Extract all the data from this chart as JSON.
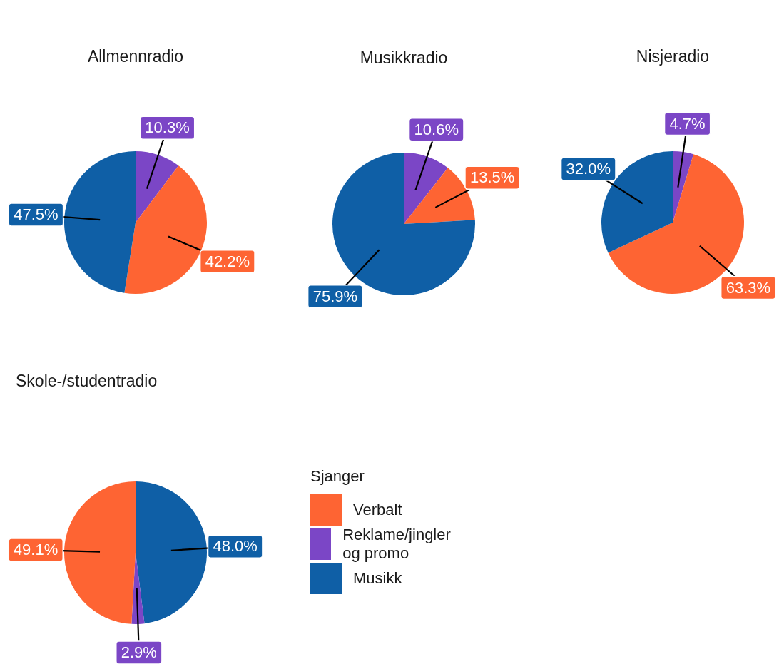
{
  "chart_data": [
    {
      "type": "pie",
      "title": "Allmennradio",
      "categories": [
        null,
        null,
        null
      ],
      "values": [
        10.3,
        42.2,
        47.5
      ],
      "colors": [
        "#7b46c6",
        "#fe6433",
        "#0f5fa6"
      ],
      "value_labels": [
        "10.3%",
        "42.2%",
        "47.5%"
      ]
    },
    {
      "type": "pie",
      "title": "Musikkradio",
      "categories": [
        null,
        null,
        null
      ],
      "values": [
        10.6,
        13.5,
        75.9
      ],
      "colors": [
        "#7b46c6",
        "#fe6433",
        "#0f5fa6"
      ],
      "value_labels": [
        "10.6%",
        "13.5%",
        "75.9%"
      ]
    },
    {
      "type": "pie",
      "title": "Nisjeradio",
      "categories": [
        null,
        null,
        null
      ],
      "values": [
        4.7,
        63.3,
        32.0
      ],
      "colors": [
        "#7b46c6",
        "#fe6433",
        "#0f5fa6"
      ],
      "value_labels": [
        "4.7%",
        "63.3%",
        "32.0%"
      ]
    },
    {
      "type": "pie",
      "title": "Skole-/studentradio",
      "categories": [
        "Musikk",
        "Reklame/jingler og promo",
        "Verbalt"
      ],
      "values": [
        48.0,
        2.9,
        49.1
      ],
      "colors": [
        "#0f5fa6",
        "#7b46c6",
        "#fe6433"
      ],
      "value_labels": [
        "48.0%",
        "2.9%",
        "49.1%"
      ],
      "legend": "right",
      "legend_title": "Sjanger"
    }
  ]
}
